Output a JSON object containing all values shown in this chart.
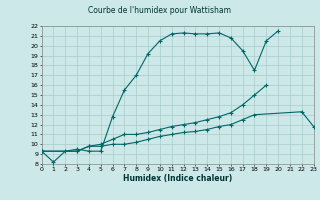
{
  "title": "Courbe de l'humidex pour Wattisham",
  "xlabel": "Humidex (Indice chaleur)",
  "bg_color": "#cde8e8",
  "grid_color": "#aacccc",
  "line_color": "#006666",
  "xlim": [
    0,
    23
  ],
  "ylim": [
    8,
    22
  ],
  "xticks": [
    0,
    1,
    2,
    3,
    4,
    5,
    6,
    7,
    8,
    9,
    10,
    11,
    12,
    13,
    14,
    15,
    16,
    17,
    18,
    19,
    20,
    21,
    22,
    23
  ],
  "yticks": [
    8,
    9,
    10,
    11,
    12,
    13,
    14,
    15,
    16,
    17,
    18,
    19,
    20,
    21,
    22
  ],
  "curve1_x": [
    0,
    1,
    2,
    3,
    4,
    5,
    6,
    7,
    8,
    9,
    10,
    11,
    12,
    13,
    14,
    15,
    16,
    17,
    18,
    19,
    20
  ],
  "curve1_y": [
    9.3,
    8.2,
    9.3,
    9.5,
    9.3,
    9.3,
    12.8,
    15.5,
    17.0,
    19.2,
    20.5,
    21.2,
    21.3,
    21.2,
    21.2,
    21.3,
    20.8,
    19.5,
    17.5,
    20.5,
    21.5
  ],
  "curve2_x": [
    0,
    3,
    4,
    5,
    6,
    7,
    8,
    9,
    10,
    11,
    12,
    13,
    14,
    15,
    16,
    17,
    18,
    19
  ],
  "curve2_y": [
    9.3,
    9.3,
    9.8,
    10.0,
    10.5,
    11.0,
    11.0,
    11.2,
    11.5,
    11.8,
    12.0,
    12.2,
    12.5,
    12.8,
    13.2,
    14.0,
    15.0,
    16.0
  ],
  "curve3_x": [
    0,
    3,
    4,
    5,
    6,
    7,
    8,
    9,
    10,
    11,
    12,
    13,
    14,
    15,
    16,
    17,
    18,
    22,
    23
  ],
  "curve3_y": [
    9.3,
    9.3,
    9.8,
    9.8,
    10.0,
    10.0,
    10.2,
    10.5,
    10.8,
    11.0,
    11.2,
    11.3,
    11.5,
    11.8,
    12.0,
    12.5,
    13.0,
    13.3,
    11.8
  ]
}
